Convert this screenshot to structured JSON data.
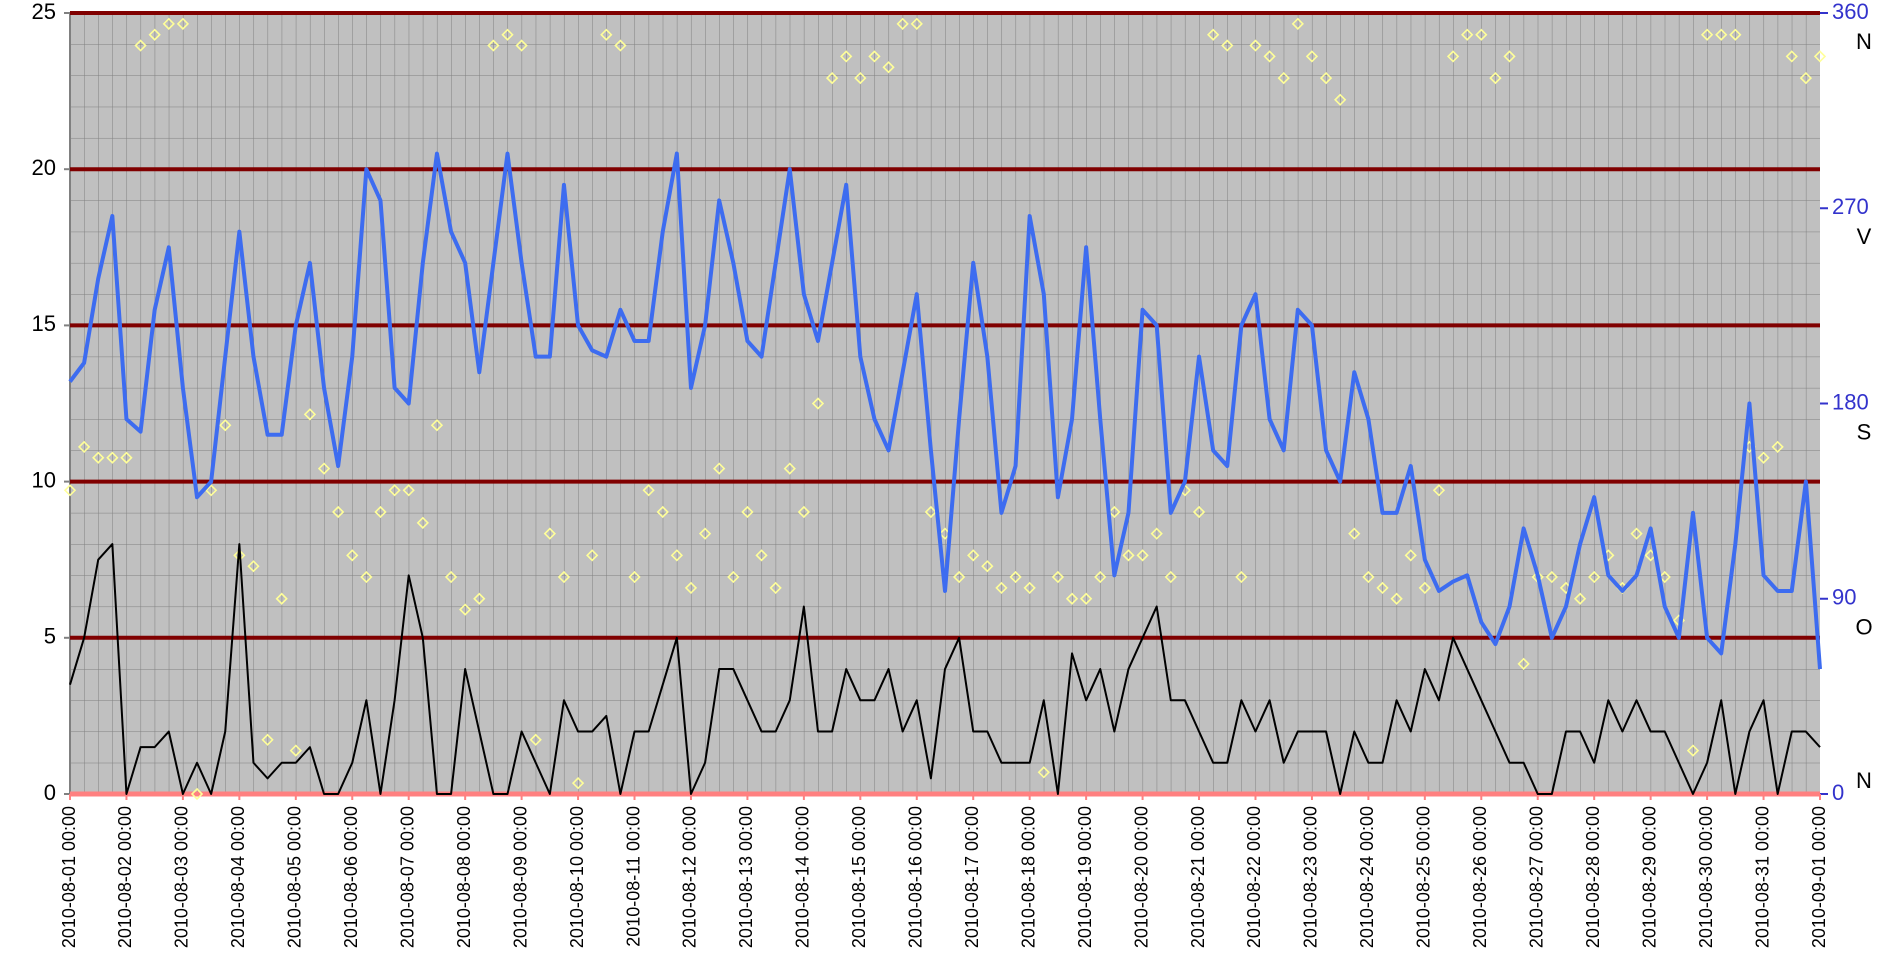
{
  "chart_data": {
    "type": "line",
    "x": [
      "2010-08-01 00:00",
      "2010-08-01 06:00",
      "2010-08-01 12:00",
      "2010-08-01 18:00",
      "2010-08-02 00:00",
      "2010-08-02 06:00",
      "2010-08-02 12:00",
      "2010-08-02 18:00",
      "2010-08-03 00:00",
      "2010-08-03 06:00",
      "2010-08-03 12:00",
      "2010-08-03 18:00",
      "2010-08-04 00:00",
      "2010-08-04 06:00",
      "2010-08-04 12:00",
      "2010-08-04 18:00",
      "2010-08-05 00:00",
      "2010-08-05 06:00",
      "2010-08-05 12:00",
      "2010-08-05 18:00",
      "2010-08-06 00:00",
      "2010-08-06 06:00",
      "2010-08-06 12:00",
      "2010-08-06 18:00",
      "2010-08-07 00:00",
      "2010-08-07 06:00",
      "2010-08-07 12:00",
      "2010-08-07 18:00",
      "2010-08-08 00:00",
      "2010-08-08 06:00",
      "2010-08-08 12:00",
      "2010-08-08 18:00",
      "2010-08-09 00:00",
      "2010-08-09 06:00",
      "2010-08-09 12:00",
      "2010-08-09 18:00",
      "2010-08-10 00:00",
      "2010-08-10 06:00",
      "2010-08-10 12:00",
      "2010-08-10 18:00",
      "2010-08-11 00:00",
      "2010-08-11 06:00",
      "2010-08-11 12:00",
      "2010-08-11 18:00",
      "2010-08-12 00:00",
      "2010-08-12 06:00",
      "2010-08-12 12:00",
      "2010-08-12 18:00",
      "2010-08-13 00:00",
      "2010-08-13 06:00",
      "2010-08-13 12:00",
      "2010-08-13 18:00",
      "2010-08-14 00:00",
      "2010-08-14 06:00",
      "2010-08-14 12:00",
      "2010-08-14 18:00",
      "2010-08-15 00:00",
      "2010-08-15 06:00",
      "2010-08-15 12:00",
      "2010-08-15 18:00",
      "2010-08-16 00:00",
      "2010-08-16 06:00",
      "2010-08-16 12:00",
      "2010-08-16 18:00",
      "2010-08-17 00:00",
      "2010-08-17 06:00",
      "2010-08-17 12:00",
      "2010-08-17 18:00",
      "2010-08-18 00:00",
      "2010-08-18 06:00",
      "2010-08-18 12:00",
      "2010-08-18 18:00",
      "2010-08-19 00:00",
      "2010-08-19 06:00",
      "2010-08-19 12:00",
      "2010-08-19 18:00",
      "2010-08-20 00:00",
      "2010-08-20 06:00",
      "2010-08-20 12:00",
      "2010-08-20 18:00",
      "2010-08-21 00:00",
      "2010-08-21 06:00",
      "2010-08-21 12:00",
      "2010-08-21 18:00",
      "2010-08-22 00:00",
      "2010-08-22 06:00",
      "2010-08-22 12:00",
      "2010-08-22 18:00",
      "2010-08-23 00:00",
      "2010-08-23 06:00",
      "2010-08-23 12:00",
      "2010-08-23 18:00",
      "2010-08-24 00:00",
      "2010-08-24 06:00",
      "2010-08-24 12:00",
      "2010-08-24 18:00",
      "2010-08-25 00:00",
      "2010-08-25 06:00",
      "2010-08-25 12:00",
      "2010-08-25 18:00",
      "2010-08-26 00:00",
      "2010-08-26 06:00",
      "2010-08-26 12:00",
      "2010-08-26 18:00",
      "2010-08-27 00:00",
      "2010-08-27 06:00",
      "2010-08-27 12:00",
      "2010-08-27 18:00",
      "2010-08-28 00:00",
      "2010-08-28 06:00",
      "2010-08-28 12:00",
      "2010-08-28 18:00",
      "2010-08-29 00:00",
      "2010-08-29 06:00",
      "2010-08-29 12:00",
      "2010-08-29 18:00",
      "2010-08-30 00:00",
      "2010-08-30 06:00",
      "2010-08-30 12:00",
      "2010-08-30 18:00",
      "2010-08-31 00:00",
      "2010-08-31 06:00",
      "2010-08-31 12:00",
      "2010-08-31 18:00",
      "2010-09-01 00:00"
    ],
    "series": [
      {
        "type": "line",
        "color": "#3d6cf0",
        "width": 4,
        "values": [
          13.2,
          13.8,
          16.5,
          18.5,
          12,
          11.6,
          15.5,
          17.5,
          13,
          9.5,
          10,
          14,
          18,
          14,
          11.5,
          11.5,
          15,
          17,
          13,
          10.5,
          14,
          20,
          19,
          13,
          12.5,
          17,
          20.5,
          18,
          17,
          13.5,
          17,
          20.5,
          17,
          14,
          14,
          19.5,
          15,
          14.2,
          14,
          15.5,
          14.5,
          14.5,
          18,
          20.5,
          13,
          15,
          19,
          17,
          14.5,
          14,
          17,
          20,
          16,
          14.5,
          17,
          19.5,
          14,
          12,
          11,
          13.5,
          16,
          11,
          6.5,
          12,
          17,
          14,
          9,
          10.5,
          18.5,
          16,
          9.5,
          12,
          17.5,
          12,
          7,
          9,
          15.5,
          15,
          9,
          10,
          14,
          11,
          10.5,
          15,
          16,
          12,
          11,
          15.5,
          15,
          11,
          10,
          13.5,
          12,
          9,
          9,
          10.5,
          7.5,
          6.5,
          6.8,
          7,
          5.5,
          4.8,
          6,
          8.5,
          7,
          5,
          6,
          8,
          9.5,
          7,
          6.5,
          7,
          8.5,
          6,
          5,
          9,
          5,
          4.5,
          8,
          12.5,
          7,
          6.5,
          6.5,
          10,
          4
        ]
      },
      {
        "type": "line",
        "color": "#000000",
        "width": 2,
        "values": [
          3.5,
          5,
          7.5,
          8,
          0,
          1.5,
          1.5,
          2,
          0,
          1,
          0,
          2,
          8,
          1,
          0.5,
          1,
          1,
          1.5,
          0,
          0,
          1,
          3,
          0,
          3,
          7,
          5,
          0,
          0,
          4,
          2,
          0,
          0,
          2,
          1,
          0,
          3,
          2,
          2,
          2.5,
          0,
          2,
          2,
          3.5,
          5,
          0,
          1,
          4,
          4,
          3,
          2,
          2,
          3,
          6,
          2,
          2,
          4,
          3,
          3,
          4,
          2,
          3,
          0.5,
          4,
          5,
          2,
          2,
          1,
          1,
          1,
          3,
          0,
          4.5,
          3,
          4,
          2,
          4,
          5,
          6,
          3,
          3,
          2,
          1,
          1,
          3,
          2,
          3,
          1,
          2,
          2,
          2,
          0,
          2,
          1,
          1,
          3,
          2,
          4,
          3,
          5,
          4,
          3,
          2,
          1,
          1,
          0,
          0,
          2,
          2,
          1,
          3,
          2,
          3,
          2,
          2,
          1,
          0,
          1,
          3,
          0,
          2,
          3,
          0,
          2,
          2,
          1.5
        ]
      },
      {
        "type": "scatter",
        "axis": "y2",
        "color": "#ffff99",
        "values": [
          140,
          160,
          155,
          155,
          155,
          345,
          350,
          355,
          355,
          0,
          140,
          170,
          110,
          105,
          25,
          90,
          20,
          175,
          150,
          130,
          110,
          100,
          130,
          140,
          140,
          125,
          170,
          100,
          85,
          90,
          345,
          350,
          345,
          25,
          120,
          100,
          5,
          110,
          350,
          345,
          100,
          140,
          130,
          110,
          95,
          120,
          150,
          100,
          130,
          110,
          95,
          150,
          130,
          180,
          330,
          340,
          330,
          340,
          335,
          355,
          355,
          130,
          120,
          100,
          110,
          105,
          95,
          100,
          95,
          10,
          100,
          90,
          90,
          100,
          130,
          110,
          110,
          120,
          100,
          140,
          130,
          350,
          345,
          100,
          345,
          340,
          330,
          355,
          340,
          330,
          320,
          120,
          100,
          95,
          90,
          110,
          95,
          140,
          340,
          350,
          350,
          330,
          340,
          60,
          100,
          100,
          95,
          90,
          100,
          110,
          95,
          120,
          110,
          100,
          80,
          20,
          350,
          350,
          350,
          160,
          155,
          160,
          340,
          330,
          340
        ]
      }
    ],
    "xlim": [
      "2010-08-01 00:00",
      "2010-09-01 00:00"
    ],
    "xticks": [
      "2010-08-01 00:00",
      "2010-08-02 00:00",
      "2010-08-03 00:00",
      "2010-08-04 00:00",
      "2010-08-05 00:00",
      "2010-08-06 00:00",
      "2010-08-07 00:00",
      "2010-08-08 00:00",
      "2010-08-09 00:00",
      "2010-08-10 00:00",
      "2010-08-11 00:00",
      "2010-08-12 00:00",
      "2010-08-13 00:00",
      "2010-08-14 00:00",
      "2010-08-15 00:00",
      "2010-08-16 00:00",
      "2010-08-17 00:00",
      "2010-08-18 00:00",
      "2010-08-19 00:00",
      "2010-08-20 00:00",
      "2010-08-21 00:00",
      "2010-08-22 00:00",
      "2010-08-23 00:00",
      "2010-08-24 00:00",
      "2010-08-25 00:00",
      "2010-08-26 00:00",
      "2010-08-27 00:00",
      "2010-08-28 00:00",
      "2010-08-29 00:00",
      "2010-08-30 00:00",
      "2010-08-31 00:00",
      "2010-09-01 00:00"
    ],
    "ylim": [
      0,
      25
    ],
    "yticks": [
      0,
      5,
      10,
      15,
      20,
      25
    ],
    "y2lim": [
      0,
      360
    ],
    "y2ticks": [
      0,
      90,
      180,
      270,
      360
    ],
    "y2_compass_labels": [
      "N",
      "O",
      "S",
      "V",
      "N"
    ],
    "grid": true,
    "grid_color": "#800000"
  }
}
